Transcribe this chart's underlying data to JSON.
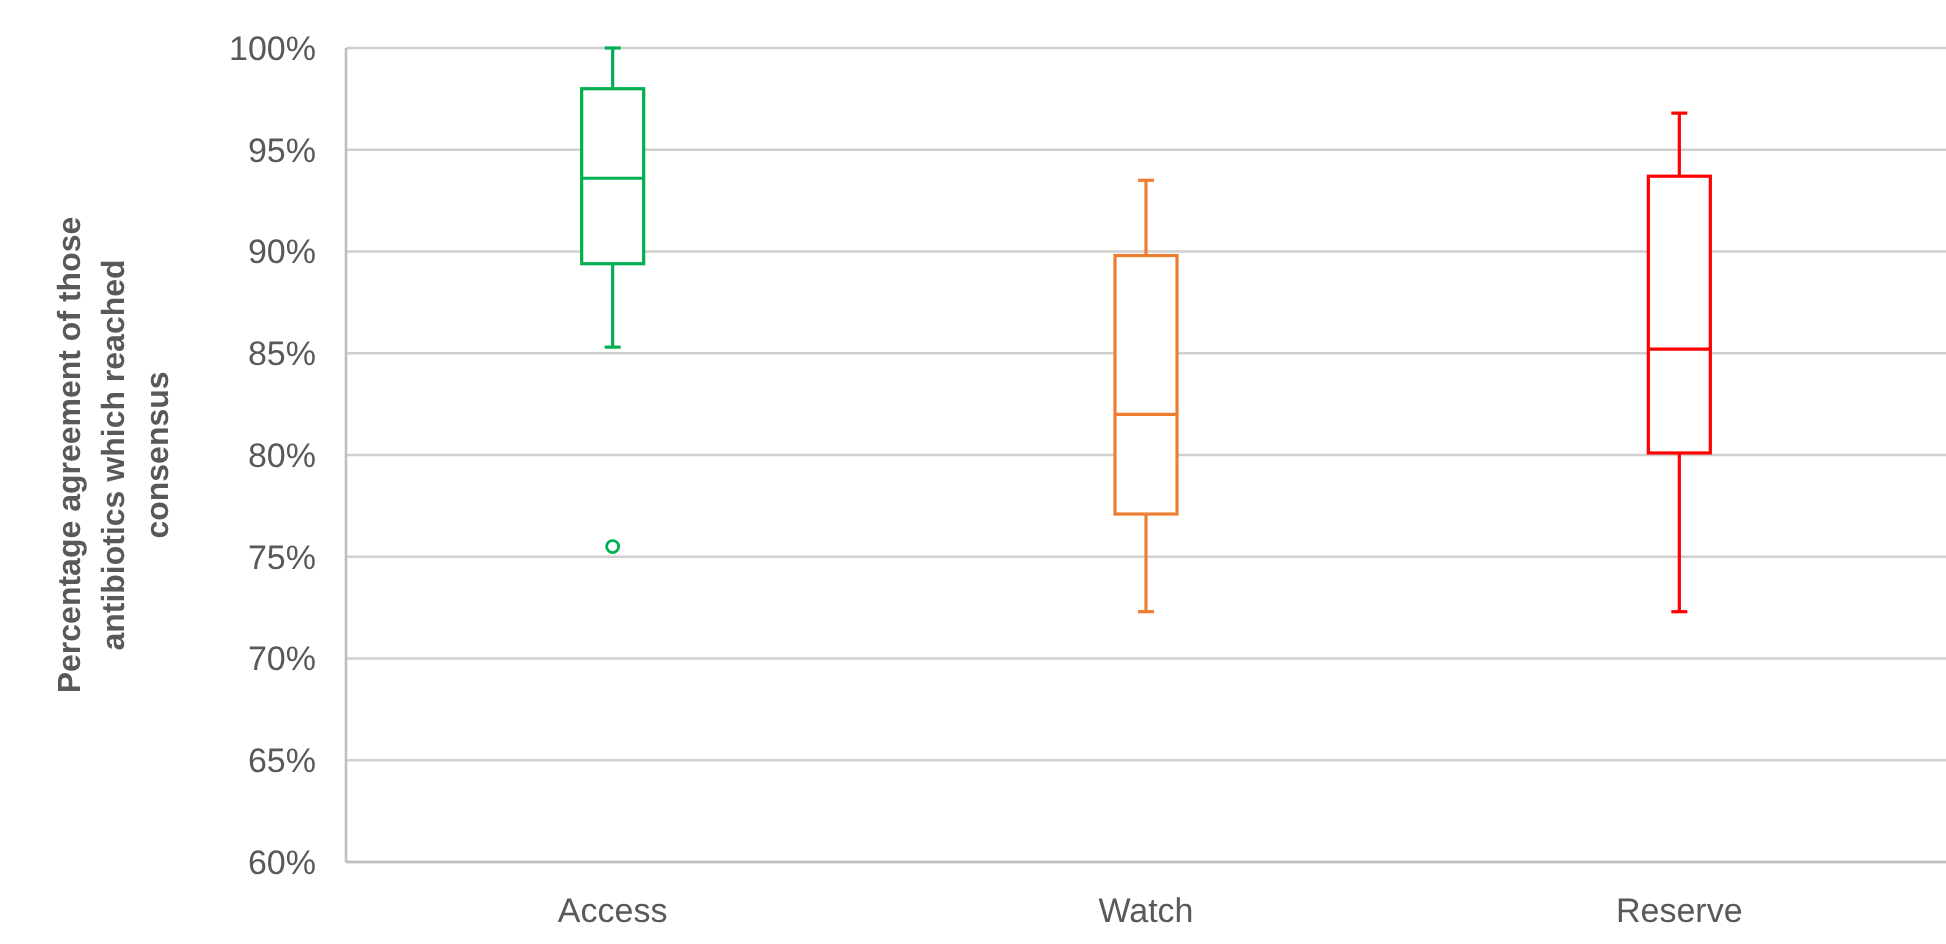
{
  "chart_data": {
    "type": "box",
    "ylabel": "Percentage agreement of those antibiotics which reached consensus",
    "categories": [
      "Access",
      "Watch",
      "Reserve"
    ],
    "colors": [
      "#00b050",
      "#ed7d31",
      "#ff0000"
    ],
    "boxes": [
      {
        "low": 85.3,
        "q1": 89.4,
        "median": 93.6,
        "q3": 98.0,
        "high": 100,
        "outliers": [
          75.5
        ]
      },
      {
        "low": 72.3,
        "q1": 77.1,
        "median": 82.0,
        "q3": 89.8,
        "high": 93.5
      },
      {
        "low": 72.3,
        "q1": 80.1,
        "median": 85.2,
        "q3": 93.7,
        "high": 96.8
      }
    ],
    "ylim": [
      60,
      100
    ],
    "yticks": [
      {
        "value": 60,
        "label": "60%"
      },
      {
        "value": 65,
        "label": "65%"
      },
      {
        "value": 70,
        "label": "70%"
      },
      {
        "value": 75,
        "label": "75%"
      },
      {
        "value": 80,
        "label": "80%"
      },
      {
        "value": 85,
        "label": "85%"
      },
      {
        "value": 90,
        "label": "90%"
      },
      {
        "value": 95,
        "label": "95%"
      },
      {
        "value": 100,
        "label": "100%"
      }
    ],
    "grid": "y"
  }
}
